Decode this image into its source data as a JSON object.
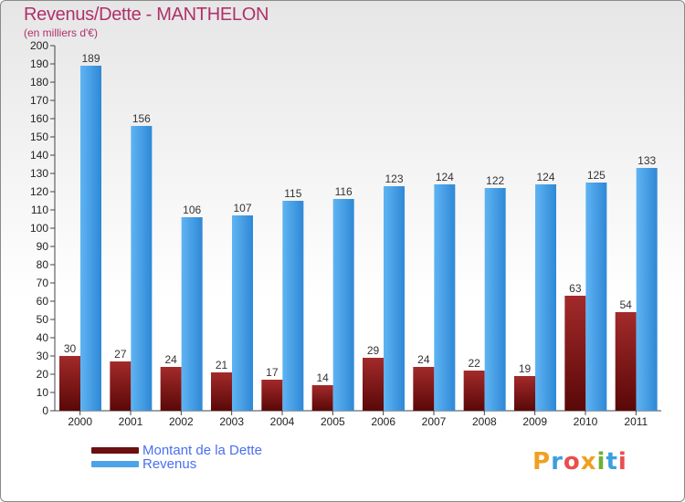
{
  "chart_data": {
    "type": "bar",
    "title": "Revenus/Dette - MANTHELON",
    "subtitle": "(en milliers d'€)",
    "categories": [
      "2000",
      "2001",
      "2002",
      "2003",
      "2004",
      "2005",
      "2006",
      "2007",
      "2008",
      "2009",
      "2010",
      "2011"
    ],
    "series": [
      {
        "name": "Montant de la Dette",
        "values": [
          30,
          27,
          24,
          21,
          17,
          14,
          29,
          24,
          22,
          19,
          63,
          54
        ],
        "color": "#8b1a1a"
      },
      {
        "name": "Revenus",
        "values": [
          189,
          156,
          106,
          107,
          115,
          116,
          123,
          124,
          122,
          124,
          125,
          133
        ],
        "color": "#4da3e8"
      }
    ],
    "ylim": [
      0,
      200
    ],
    "yticks": [
      0,
      10,
      20,
      30,
      40,
      50,
      60,
      70,
      80,
      90,
      100,
      110,
      120,
      130,
      140,
      150,
      160,
      170,
      180,
      190,
      200
    ],
    "grid": false,
    "legend_position": "bottom-left"
  },
  "logo": {
    "text": "Proxiti",
    "letters": [
      {
        "char": "P",
        "color": "#f0a020"
      },
      {
        "char": "r",
        "color": "#3aa0e0"
      },
      {
        "char": "o",
        "color": "#e94e4e"
      },
      {
        "char": "x",
        "color": "#f0a020"
      },
      {
        "char": "i",
        "color": "#70b030"
      },
      {
        "char": "t",
        "color": "#3aa0e0"
      },
      {
        "char": "i",
        "color": "#e94e4e"
      }
    ]
  }
}
